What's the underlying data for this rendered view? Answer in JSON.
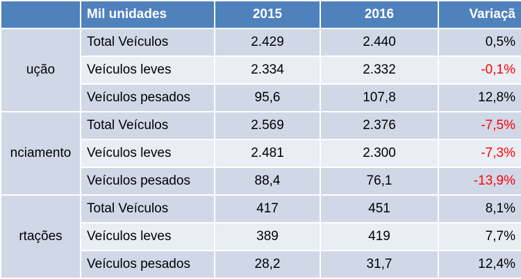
{
  "table": {
    "header": [
      "",
      "Mil unidades",
      "2015",
      "2016",
      "Variaçã"
    ],
    "negative_color": "#ff0000",
    "groups": [
      {
        "label": "ução",
        "rows": [
          [
            "Total Veículos",
            "2.429",
            "2.440",
            "0,5%"
          ],
          [
            "Veículos leves",
            "2.334",
            "2.332",
            "-0,1%"
          ],
          [
            "Veículos pesados",
            "95,6",
            "107,8",
            "12,8%"
          ]
        ]
      },
      {
        "label": "nciamento",
        "rows": [
          [
            "Total Veículos",
            "2.569",
            "2.376",
            "-7,5%"
          ],
          [
            "Veículos leves",
            "2.481",
            "2.300",
            "-7,3%"
          ],
          [
            "Veículos pesados",
            "88,4",
            "76,1",
            "-13,9%"
          ]
        ]
      },
      {
        "label": "rtações",
        "rows": [
          [
            "Total Veículos",
            "417",
            "451",
            "8,1%"
          ],
          [
            "Veículos leves",
            "389",
            "419",
            "7,7%"
          ],
          [
            "Veículos pesados",
            "28,2",
            "31,7",
            "12,4%"
          ]
        ]
      }
    ]
  }
}
